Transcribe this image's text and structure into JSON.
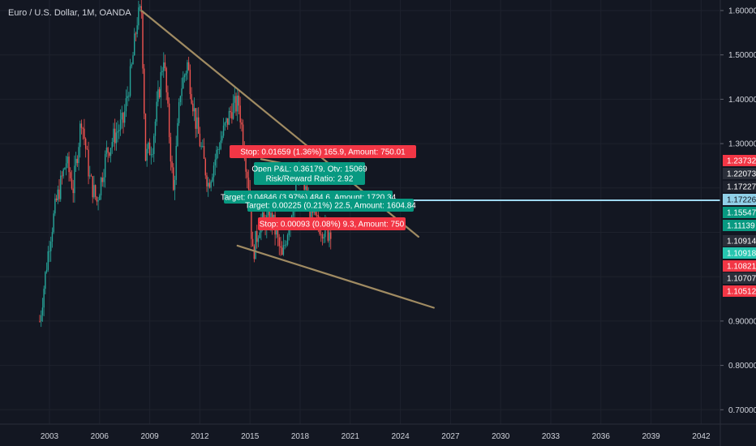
{
  "header": {
    "symbol_title": "Euro / U.S. Dollar, 1M, OANDA"
  },
  "colors": {
    "background": "#131722",
    "grid": "#1e222d",
    "axis_text": "#d1d4dc",
    "bull": "#26a69a",
    "bear": "#ef5350",
    "neutral": "#a0a4ad",
    "trendline": "#a08b62",
    "position_line": "#9ed8f0",
    "stop_box": "#f23645",
    "target_box": "#089981",
    "last_price_box": "#90d0e8"
  },
  "chart_data": {
    "type": "candlestick",
    "title": "Euro / U.S. Dollar, 1M, OANDA",
    "x_axis": {
      "type": "date",
      "range": [
        "2001-04",
        "2042-12"
      ],
      "ticks": [
        "2003",
        "2006",
        "2009",
        "2012",
        "2015",
        "2018",
        "2021",
        "2024",
        "2027",
        "2030",
        "2033",
        "2036",
        "2039",
        "2042"
      ]
    },
    "y_axis": {
      "range": [
        0.6,
        1.62
      ],
      "position": "right",
      "ticks": [
        "1.60000",
        "1.50000",
        "1.40000",
        "1.30000",
        "0.90000",
        "0.80000",
        "0.70000"
      ]
    },
    "grid": true,
    "series": [
      {
        "type": "ohlc-monthly",
        "points": [
          {
            "date": "2002-06",
            "value": 0.9
          },
          {
            "date": "2003-01",
            "value": 1.08
          },
          {
            "date": "2003-06",
            "value": 1.17
          },
          {
            "date": "2004-01",
            "value": 1.26
          },
          {
            "date": "2004-06",
            "value": 1.2
          },
          {
            "date": "2004-12",
            "value": 1.36
          },
          {
            "date": "2005-06",
            "value": 1.22
          },
          {
            "date": "2005-11",
            "value": 1.17
          },
          {
            "date": "2006-06",
            "value": 1.28
          },
          {
            "date": "2006-12",
            "value": 1.32
          },
          {
            "date": "2007-06",
            "value": 1.35
          },
          {
            "date": "2007-12",
            "value": 1.47
          },
          {
            "date": "2008-04",
            "value": 1.58
          },
          {
            "date": "2008-07",
            "value": 1.6
          },
          {
            "date": "2008-10",
            "value": 1.27
          },
          {
            "date": "2009-03",
            "value": 1.3
          },
          {
            "date": "2009-11",
            "value": 1.5
          },
          {
            "date": "2010-06",
            "value": 1.19
          },
          {
            "date": "2010-11",
            "value": 1.42
          },
          {
            "date": "2011-04",
            "value": 1.48
          },
          {
            "date": "2011-10",
            "value": 1.35
          },
          {
            "date": "2012-07",
            "value": 1.21
          },
          {
            "date": "2013-03",
            "value": 1.3
          },
          {
            "date": "2013-12",
            "value": 1.38
          },
          {
            "date": "2014-05",
            "value": 1.39
          },
          {
            "date": "2014-12",
            "value": 1.21
          },
          {
            "date": "2015-03",
            "value": 1.05
          },
          {
            "date": "2015-08",
            "value": 1.12
          },
          {
            "date": "2016-05",
            "value": 1.13
          },
          {
            "date": "2016-12",
            "value": 1.04
          },
          {
            "date": "2017-06",
            "value": 1.14
          },
          {
            "date": "2018-01",
            "value": 1.24
          },
          {
            "date": "2018-10",
            "value": 1.13
          },
          {
            "date": "2019-09",
            "value": 1.1
          },
          {
            "date": "2019-11",
            "value": 1.11
          }
        ]
      }
    ],
    "trendlines": [
      {
        "from": {
          "date": "2008-07",
          "value": 1.6
        },
        "to": {
          "date": "2025-02",
          "value": 1.09
        }
      },
      {
        "from": {
          "date": "2014-04",
          "value": 1.07
        },
        "to": {
          "date": "2026-01",
          "value": 0.93
        }
      },
      {
        "from": {
          "date": "2015-09",
          "value": 1.265
        },
        "to": {
          "date": "2019-10",
          "value": 1.235
        }
      }
    ],
    "position_line": {
      "value": 1.17227
    },
    "price_badges": [
      {
        "label": "1.23732",
        "value": 1.23732,
        "kind": "stop"
      },
      {
        "label": "1.22073",
        "value": 1.22073,
        "kind": "neutral"
      },
      {
        "label": "1.17227",
        "value": 1.17227,
        "kind": "position"
      },
      {
        "label": "1.17226",
        "value": 1.17226,
        "kind": "last"
      },
      {
        "label": "1.15547",
        "value": 1.15547,
        "kind": "target"
      },
      {
        "label": "1.11139",
        "value": 1.11139,
        "kind": "target"
      },
      {
        "label": "1.10914",
        "value": 1.10914,
        "kind": "neutral"
      },
      {
        "label": "1.10918",
        "value": 1.10918,
        "kind": "target-light"
      },
      {
        "label": "1.10821",
        "value": 1.10821,
        "kind": "stop"
      },
      {
        "label": "1.10707",
        "value": 1.10707,
        "kind": "neutral"
      },
      {
        "label": "1.10512",
        "value": 1.10512,
        "kind": "stop"
      }
    ],
    "annotations": [
      {
        "text": "Stop: 0.01659 (1.36%) 165.9, Amount: 750.01",
        "kind": "stop"
      },
      {
        "text": "Open P&L: 0.36179, Qty: 15069",
        "kind": "target"
      },
      {
        "text": "Risk/Reward Ratio: 2.92",
        "kind": "target"
      },
      {
        "text": "Target: 0.04846 (3.97%) 484.6, Amount: 1720.34",
        "kind": "target"
      },
      {
        "text": "Target: 0.00225 (0.21%) 22.5, Amount: 1604.84",
        "kind": "target"
      },
      {
        "text": "Stop: 0.00093 (0.08%) 9.3, Amount: 750",
        "kind": "stop"
      }
    ]
  }
}
